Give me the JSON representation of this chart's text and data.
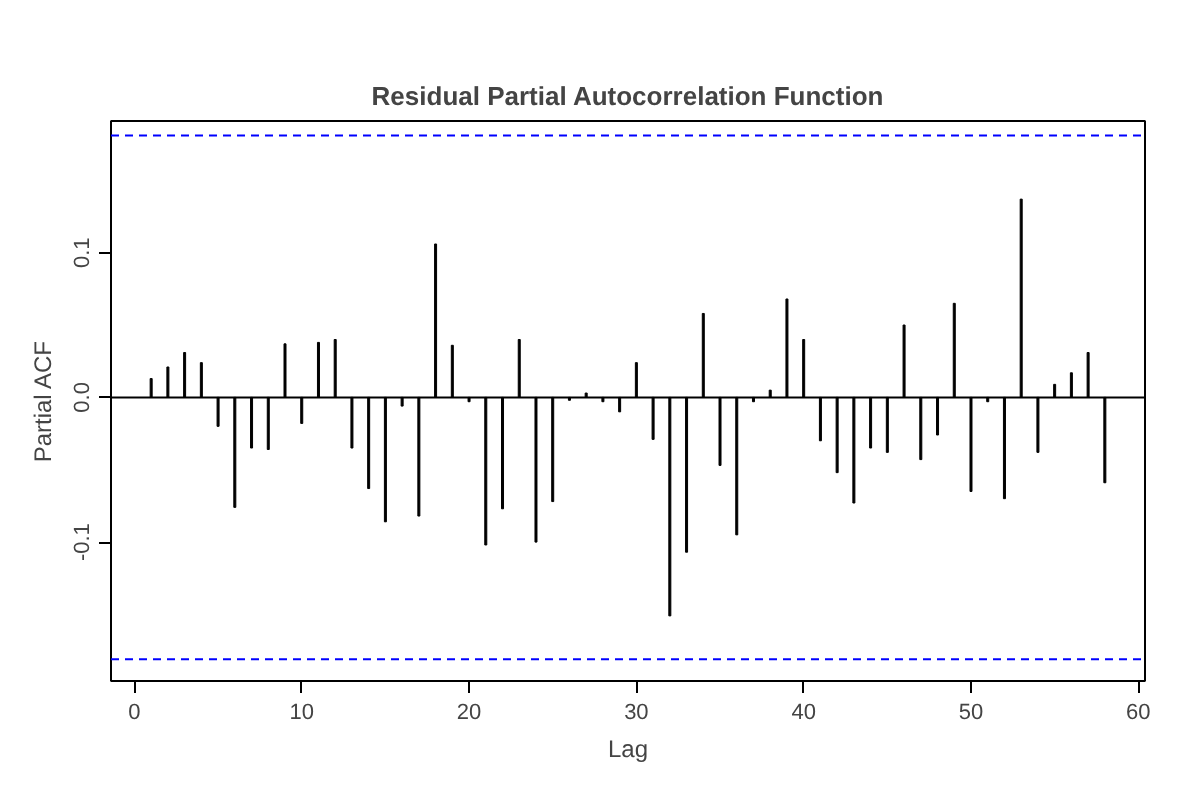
{
  "chart_data": {
    "type": "bar",
    "title": "Residual Partial Autocorrelation Function",
    "xlabel": "Lag",
    "ylabel": "Partial ACF",
    "x": [
      1,
      2,
      3,
      4,
      5,
      6,
      7,
      8,
      9,
      10,
      11,
      12,
      13,
      14,
      15,
      16,
      17,
      18,
      19,
      20,
      21,
      22,
      23,
      24,
      25,
      26,
      27,
      28,
      29,
      30,
      31,
      32,
      33,
      34,
      35,
      36,
      37,
      38,
      39,
      40,
      41,
      42,
      43,
      44,
      45,
      46,
      47,
      48,
      49,
      50,
      51,
      52,
      53,
      54,
      55,
      56,
      57,
      58
    ],
    "values": [
      0.013,
      0.021,
      0.031,
      0.024,
      -0.02,
      -0.076,
      -0.035,
      -0.036,
      0.037,
      -0.018,
      0.038,
      0.04,
      -0.035,
      -0.063,
      -0.086,
      -0.006,
      -0.082,
      0.106,
      0.036,
      -0.003,
      -0.102,
      -0.077,
      0.04,
      -0.1,
      -0.072,
      -0.002,
      0.003,
      -0.003,
      -0.01,
      0.024,
      -0.029,
      -0.151,
      -0.107,
      0.058,
      -0.047,
      -0.095,
      -0.003,
      0.005,
      0.068,
      0.04,
      -0.03,
      -0.052,
      -0.073,
      -0.035,
      -0.038,
      0.05,
      -0.043,
      -0.026,
      0.065,
      -0.065,
      -0.003,
      -0.07,
      0.137,
      -0.038,
      0.009,
      0.017,
      0.031,
      -0.059
    ],
    "color": "#000000",
    "xlim": [
      -1.4,
      60.4
    ],
    "ylim": [
      -0.196,
      0.191
    ],
    "xticks": [
      0,
      10,
      20,
      30,
      40,
      50,
      60
    ],
    "yticks": [
      {
        "value": -0.1,
        "label": "-0.1"
      },
      {
        "value": 0,
        "label": "0.0"
      },
      {
        "value": 0.1,
        "label": "0.1"
      }
    ],
    "ref_lines": [
      {
        "axis": "y",
        "value": 0,
        "color": "#000000",
        "line_style": "solid"
      },
      {
        "axis": "y",
        "value": 0.181,
        "color": "#0000ff",
        "line_style": "dashed"
      },
      {
        "axis": "y",
        "value": -0.181,
        "color": "#0000ff",
        "line_style": "dashed"
      }
    ],
    "grid": false
  }
}
